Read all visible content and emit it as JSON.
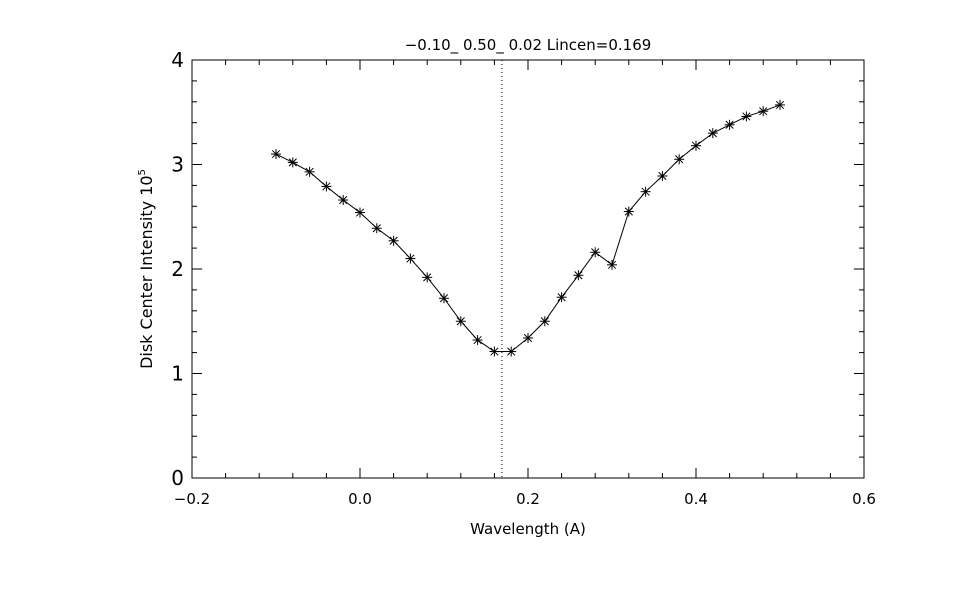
{
  "chart_data": {
    "type": "line",
    "title": "−0.10_ 0.50_ 0.02   Lincen=0.169",
    "xlabel": "Wavelength (A)",
    "ylabel": "Disk Center Intensity 10",
    "ylabel_exponent": "5",
    "xlim": [
      -0.2,
      0.6
    ],
    "ylim": [
      0,
      4
    ],
    "x_ticks": [
      -0.2,
      0.0,
      0.2,
      0.4,
      0.6
    ],
    "x_tick_labels": [
      "−0.2",
      "0.0",
      "0.2",
      "0.4",
      "0.6"
    ],
    "y_ticks": [
      0,
      1,
      2,
      3,
      4
    ],
    "y_tick_labels": [
      "0",
      "1",
      "2",
      "3",
      "4"
    ],
    "grid": false,
    "marker": "asterisk",
    "color": "#000000",
    "reference_line": {
      "x": 0.169,
      "style": "dotted"
    },
    "series": [
      {
        "x": [
          -0.1,
          -0.08,
          -0.06,
          -0.04,
          -0.02,
          0.0,
          0.02,
          0.04,
          0.06,
          0.08,
          0.1,
          0.12,
          0.14,
          0.16,
          0.18,
          0.2,
          0.22,
          0.24,
          0.26,
          0.28,
          0.3,
          0.32,
          0.34,
          0.36,
          0.38,
          0.4,
          0.42,
          0.44,
          0.46,
          0.48,
          0.5
        ],
        "y": [
          3.1,
          3.02,
          2.93,
          2.79,
          2.66,
          2.54,
          2.39,
          2.27,
          2.1,
          1.92,
          1.72,
          1.5,
          1.32,
          1.21,
          1.21,
          1.34,
          1.5,
          1.73,
          1.94,
          2.16,
          2.04,
          2.55,
          2.74,
          2.89,
          3.05,
          3.18,
          3.3,
          3.38,
          3.46,
          3.51,
          3.57
        ]
      }
    ]
  }
}
